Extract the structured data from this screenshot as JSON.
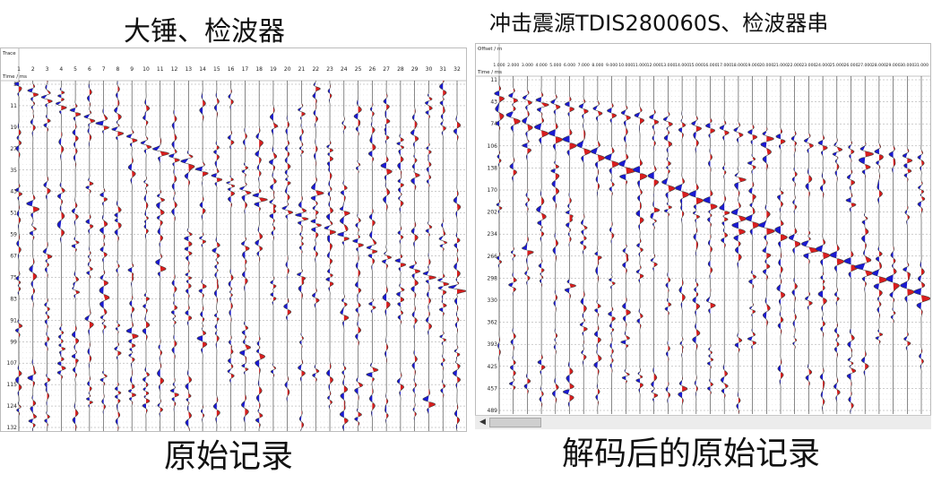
{
  "titles": {
    "left": "大锤、检波器",
    "right": "冲击震源TDIS280060S、检波器串"
  },
  "captions": {
    "left": "原始记录",
    "right": "解码后的原始记录"
  },
  "left_panel": {
    "corner_top": "Trace",
    "corner_bottom": "Time / ms",
    "traces": [
      "1",
      "2",
      "3",
      "4",
      "5",
      "6",
      "7",
      "8",
      "9",
      "10",
      "11",
      "12",
      "13",
      "14",
      "15",
      "16",
      "17",
      "18",
      "19",
      "20",
      "21",
      "22",
      "23",
      "24",
      "25",
      "26",
      "27",
      "28",
      "29",
      "30",
      "31",
      "32"
    ],
    "time_ticks": [
      "3",
      "11",
      "19",
      "27",
      "35",
      "43",
      "51",
      "59",
      "67",
      "75",
      "83",
      "91",
      "99",
      "107",
      "115",
      "124",
      "132"
    ]
  },
  "right_panel": {
    "corner_top": "Offset / m",
    "corner_bottom": "Time / ms",
    "offsets": [
      "1.000",
      "2.000",
      "3.000",
      "4.000",
      "5.000",
      "6.000",
      "7.000",
      "8.000",
      "9.000",
      "10.000",
      "11.000",
      "12.000",
      "13.000",
      "14.000",
      "15.000",
      "16.000",
      "17.000",
      "18.000",
      "19.000",
      "20.000",
      "21.000",
      "22.000",
      "23.000",
      "24.000",
      "25.000",
      "26.000",
      "27.000",
      "28.000",
      "29.000",
      "30.000",
      "31.000"
    ],
    "time_ticks": [
      "11",
      "43",
      "74",
      "106",
      "138",
      "170",
      "202",
      "234",
      "266",
      "298",
      "330",
      "362",
      "393",
      "425",
      "457",
      "489"
    ]
  },
  "colors": {
    "positive": "#d81e1e",
    "negative": "#1a1ad0",
    "line": "#3a3a3a",
    "grid": "#9a9a9a"
  }
}
